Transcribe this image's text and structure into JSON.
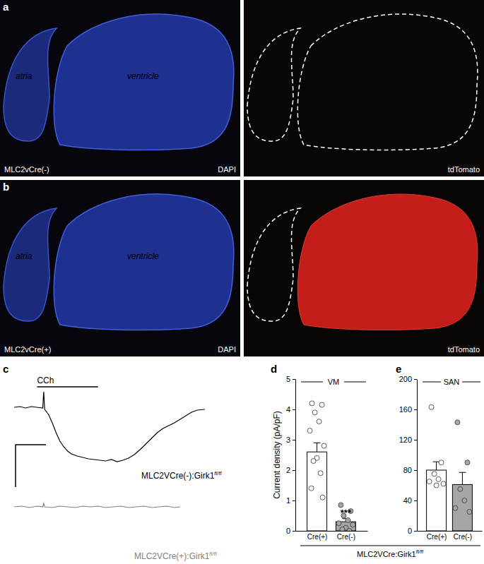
{
  "panel_labels": [
    "a",
    "b",
    "c",
    "d",
    "e"
  ],
  "micrographs": [
    {
      "genotype": "MLC2vCre(-)",
      "stain": "DAPI",
      "regions": [
        "atria",
        "ventricle"
      ],
      "reporter": "tdTomato",
      "reporter_expressed": false
    },
    {
      "genotype": "MLC2vCre(+)",
      "stain": "DAPI",
      "regions": [
        "atria",
        "ventricle"
      ],
      "reporter": "tdTomato",
      "reporter_expressed": true
    }
  ],
  "chart_data": [
    {
      "type": "line",
      "label": "MLC2VCre(-):Girk1",
      "label_superscript": "fl/fl",
      "x": [
        0,
        3,
        6,
        9,
        12,
        15,
        15.5,
        16,
        18,
        20,
        22,
        24,
        26,
        28,
        30,
        33,
        36,
        39,
        42,
        45,
        48,
        51,
        54,
        57,
        60,
        63,
        66,
        69,
        72,
        75,
        78,
        81,
        84,
        87,
        90,
        93,
        96,
        100
      ],
      "values": [
        0,
        1,
        -1,
        1,
        0,
        -1,
        22,
        -3,
        -10,
        -22,
        -36,
        -48,
        -56,
        -62,
        -66,
        -69,
        -71,
        -73,
        -74,
        -75,
        -76,
        -74,
        -77,
        -75,
        -72,
        -67,
        -60,
        -52,
        -44,
        -36,
        -30,
        -26,
        -22,
        -17,
        -12,
        -7,
        -4,
        -3
      ],
      "color": "#000000",
      "xlim": [
        0,
        100
      ],
      "ylim": [
        -90,
        30
      ],
      "tick_labels": false,
      "annotation": {
        "text": "CCh",
        "x": [
          12,
          44
        ]
      }
    },
    {
      "type": "line",
      "label": "MLC2VCre(+):Girk1",
      "label_superscript": "fl/fl",
      "x": [
        0,
        4,
        8,
        12,
        15,
        15.5,
        16,
        20,
        24,
        28,
        32,
        36,
        40,
        44,
        48,
        52,
        56,
        60,
        64,
        68,
        72,
        76,
        80,
        84,
        87
      ],
      "values": [
        0,
        1,
        -1,
        1,
        0,
        5,
        0,
        -1,
        1,
        0,
        -1,
        1,
        0,
        1,
        -1,
        0,
        1,
        -1,
        0,
        1,
        -1,
        0,
        1,
        -1,
        0
      ],
      "color": "#808080",
      "xlim": [
        0,
        100
      ],
      "ylim": [
        -20,
        20
      ],
      "tick_labels": false
    },
    {
      "type": "bar",
      "group_label": "VM",
      "ylabel": "Current density (pA/pF)",
      "categories": [
        "Cre(+)",
        "Cre(-)"
      ],
      "values": [
        2.6,
        0.3
      ],
      "errors": [
        0.3,
        0.1
      ],
      "colors": [
        "#ffffff",
        "#a6a6a6"
      ],
      "points": [
        [
          4.2,
          4.15,
          3.9,
          3.6,
          3.3,
          2.8,
          2.4,
          2.3,
          1.9,
          1.4,
          1.1
        ],
        [
          0.85,
          0.65,
          0.5,
          0.35,
          0.25,
          0.2,
          0.1,
          0.05,
          0
        ]
      ],
      "ylim": [
        0,
        5
      ],
      "yticks": [
        0,
        1,
        2,
        3,
        4,
        5
      ],
      "annotation": {
        "text": "***",
        "category": 1
      }
    },
    {
      "type": "bar",
      "group_label": "SAN",
      "categories": [
        "Cre(+)",
        "Cre(-)"
      ],
      "values": [
        80,
        61
      ],
      "errors": [
        11,
        16
      ],
      "colors": [
        "#ffffff",
        "#a6a6a6"
      ],
      "points": [
        [
          163,
          90,
          75,
          68,
          65,
          62,
          60
        ],
        [
          143,
          90,
          55,
          40,
          30,
          25
        ]
      ],
      "ylim": [
        0,
        200
      ],
      "yticks": [
        0,
        40,
        80,
        120,
        160,
        200
      ]
    }
  ],
  "shared_label": {
    "text": "MLC2VCre:Girk1",
    "superscript": "fl/fl"
  }
}
